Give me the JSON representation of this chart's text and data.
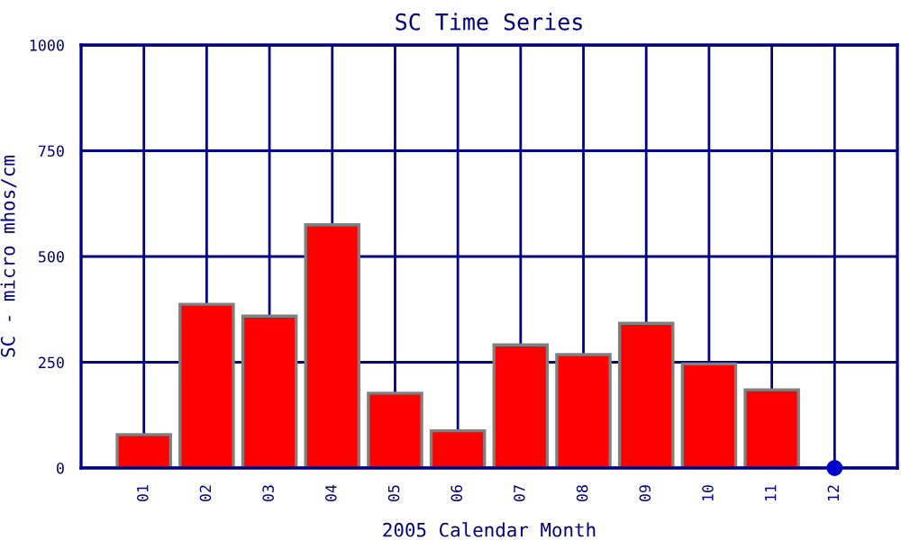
{
  "chart_data": {
    "type": "bar",
    "title": "SC Time Series",
    "xlabel": "2005 Calendar Month",
    "ylabel": "SC - micro mhos/cm",
    "categories": [
      "01",
      "02",
      "03",
      "04",
      "05",
      "06",
      "07",
      "08",
      "09",
      "10",
      "11",
      "12"
    ],
    "series": [
      {
        "color": "#ff0000",
        "values": [
          79,
          387,
          359,
          575,
          177,
          88,
          291,
          268,
          342,
          246,
          185,
          null
        ]
      },
      {
        "type": "scatter",
        "color": "#0000cc",
        "x": [
          "12"
        ],
        "values": [
          0
        ],
        "marker": "circle"
      }
    ],
    "ylim": [
      0,
      1000
    ],
    "yticks": [
      0,
      250,
      500,
      750,
      1000
    ],
    "grid": true
  }
}
